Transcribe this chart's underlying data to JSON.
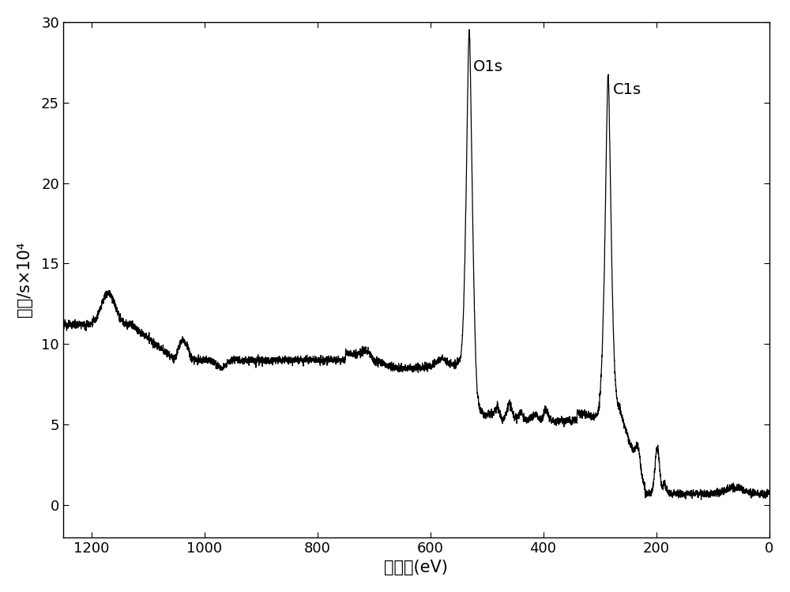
{
  "xlabel": "结合能(eV)",
  "ylabel_line1": "强度/s×10⁴",
  "xlim": [
    1250,
    0
  ],
  "ylim": [
    -2,
    30
  ],
  "yticks": [
    0,
    5,
    10,
    15,
    20,
    25,
    30
  ],
  "xticks": [
    1200,
    1000,
    800,
    600,
    400,
    200,
    0
  ],
  "O1s_label": "O1s",
  "C1s_label": "C1s",
  "O1s_x": 531,
  "C1s_x": 285,
  "line_color": "#000000",
  "background_color": "#ffffff",
  "label_fontsize": 15,
  "tick_fontsize": 13,
  "annotation_fontsize": 14
}
